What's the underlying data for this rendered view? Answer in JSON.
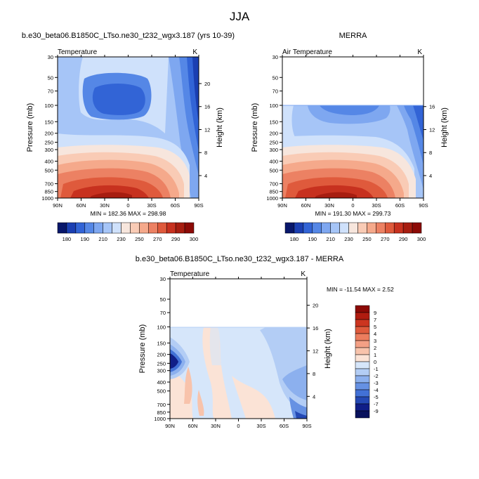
{
  "figure_title": "JJA",
  "titles": {
    "model": "b.e30_beta06.B1850C_LTso.ne30_t232_wgx3.187 (yrs 10-39)",
    "obs": "MERRA",
    "diff": "b.e30_beta06.B1850C_LTso.ne30_t232_wgx3.187 - MERRA"
  },
  "chart_data": [
    {
      "type": "heatmap",
      "panel": "model",
      "title": "b.e30_beta06.B1850C_LTso.ne30_t232_wgx3.187 (yrs 10-39)",
      "left_label": "Temperature",
      "right_label": "K",
      "ylabel": "Pressure (mb)",
      "y2label": "Height (km)",
      "xticks": [
        "90N",
        "60N",
        "30N",
        "0",
        "30S",
        "60S",
        "90S"
      ],
      "pressure_ticks": [
        "30",
        "50",
        "70",
        "100",
        "150",
        "200",
        "250",
        "300",
        "400",
        "500",
        "700",
        "850",
        "1000"
      ],
      "height_ticks": [
        "20",
        "16",
        "12",
        "8",
        "4"
      ],
      "stats": "MIN = 182.36   MAX = 298.98",
      "colorbar_labels": [
        "180",
        "190",
        "210",
        "230",
        "250",
        "270",
        "290",
        "300"
      ],
      "colorbar_colors": [
        "#08176b",
        "#1b3fb2",
        "#3264d6",
        "#5587e6",
        "#7ea7f0",
        "#a6c5f7",
        "#cfe1fb",
        "#f7e6dd",
        "#f9cbb5",
        "#f5a98b",
        "#ec8163",
        "#df5a3c",
        "#c7311f",
        "#a71d10",
        "#8c0a06"
      ],
      "min": 182.36,
      "max": 298.98,
      "ylim_mb": [
        1000,
        30
      ],
      "data_top_mb": 30
    },
    {
      "type": "heatmap",
      "panel": "obs",
      "title": "MERRA",
      "left_label": "Air Temperature",
      "right_label": "K",
      "ylabel": "Pressure (mb)",
      "y2label": "Height (km)",
      "xticks": [
        "90N",
        "60N",
        "30N",
        "0",
        "30S",
        "60S",
        "90S"
      ],
      "pressure_ticks": [
        "30",
        "50",
        "70",
        "100",
        "150",
        "200",
        "250",
        "300",
        "400",
        "500",
        "700",
        "850",
        "1000"
      ],
      "height_ticks": [
        "16",
        "12",
        "8",
        "4"
      ],
      "stats": "MIN = 191.30   MAX = 299.73",
      "colorbar_labels": [
        "180",
        "190",
        "210",
        "230",
        "250",
        "270",
        "290",
        "300"
      ],
      "colorbar_colors": [
        "#08176b",
        "#1b3fb2",
        "#3264d6",
        "#5587e6",
        "#7ea7f0",
        "#a6c5f7",
        "#cfe1fb",
        "#f7e6dd",
        "#f9cbb5",
        "#f5a98b",
        "#ec8163",
        "#df5a3c",
        "#c7311f",
        "#a71d10",
        "#8c0a06"
      ],
      "min": 191.3,
      "max": 299.73,
      "ylim_mb": [
        1000,
        30
      ],
      "data_top_mb": 100
    },
    {
      "type": "heatmap",
      "panel": "diff",
      "title": "b.e30_beta06.B1850C_LTso.ne30_t232_wgx3.187 - MERRA",
      "left_label": "Temperature",
      "right_label": "K",
      "ylabel": "Pressure (mb)",
      "y2label": "Height (km)",
      "xticks": [
        "90N",
        "60N",
        "30N",
        "0",
        "30S",
        "60S",
        "90S"
      ],
      "pressure_ticks": [
        "30",
        "50",
        "70",
        "100",
        "150",
        "200",
        "250",
        "300",
        "400",
        "500",
        "700",
        "850",
        "1000"
      ],
      "height_ticks": [
        "20",
        "16",
        "12",
        "8",
        "4"
      ],
      "stats": "MIN = -11.54  MAX =   2.52",
      "colorbar_labels": [
        "9",
        "7",
        "5",
        "4",
        "3",
        "2",
        "1",
        "0",
        "-1",
        "-2",
        "-3",
        "-4",
        "-5",
        "-7",
        "-9"
      ],
      "colorbar_colors": [
        "#8c0a06",
        "#b01c10",
        "#cc3520",
        "#df5a3c",
        "#ec7d5e",
        "#f4a085",
        "#f8c3ab",
        "#fbe3d6",
        "#d6e6fa",
        "#b3cdf5",
        "#8cb0ee",
        "#6691e3",
        "#4271d6",
        "#2549b4",
        "#101e87",
        "#08115c"
      ],
      "min": -11.54,
      "max": 2.52,
      "ylim_mb": [
        1000,
        30
      ],
      "data_top_mb": 100
    }
  ]
}
